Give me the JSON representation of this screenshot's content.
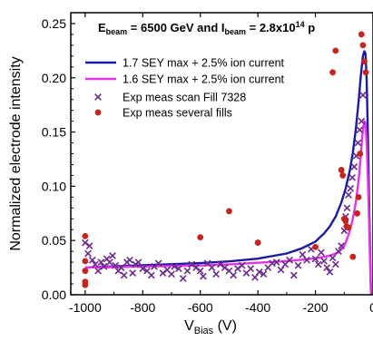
{
  "chart_data": {
    "type": "scatter",
    "title": "",
    "annotation": {
      "parts": [
        {
          "t": "E",
          "sub": false,
          "sup": false
        },
        {
          "t": "beam",
          "sub": true,
          "sup": false
        },
        {
          "t": " = 6500 GeV and I",
          "sub": false,
          "sup": false
        },
        {
          "t": "beam",
          "sub": true,
          "sup": false
        },
        {
          "t": " = 2.8x10",
          "sub": false,
          "sup": false
        },
        {
          "t": "14",
          "sub": false,
          "sup": true
        },
        {
          "t": " p",
          "sub": false,
          "sup": false
        }
      ]
    },
    "xlabel_main": "V",
    "xlabel_sub": "Bias",
    "xlabel_unit": " (V)",
    "ylabel": "Normalized electrode intensity",
    "xlim": [
      -1050,
      0
    ],
    "ylim": [
      0,
      0.26
    ],
    "xticks": [
      -1000,
      -800,
      -600,
      -400,
      -200,
      0
    ],
    "yticks": [
      0.0,
      0.05,
      0.1,
      0.15,
      0.2,
      0.25
    ],
    "grid": false,
    "legend_position": "top-left",
    "series": [
      {
        "name": "1.7 SEY max + 2.5% ion current",
        "kind": "line",
        "color": "#1a1aa6",
        "points": [
          [
            -1000,
            0.025
          ],
          [
            -900,
            0.0262
          ],
          [
            -800,
            0.0272
          ],
          [
            -700,
            0.0282
          ],
          [
            -600,
            0.0292
          ],
          [
            -500,
            0.0308
          ],
          [
            -400,
            0.0333
          ],
          [
            -300,
            0.038
          ],
          [
            -250,
            0.0425
          ],
          [
            -200,
            0.049
          ],
          [
            -170,
            0.0565
          ],
          [
            -150,
            0.063
          ],
          [
            -130,
            0.072
          ],
          [
            -110,
            0.085
          ],
          [
            -95,
            0.098
          ],
          [
            -80,
            0.115
          ],
          [
            -70,
            0.131
          ],
          [
            -60,
            0.152
          ],
          [
            -50,
            0.178
          ],
          [
            -42,
            0.203
          ],
          [
            -35,
            0.22
          ],
          [
            -30,
            0.2245
          ],
          [
            -26,
            0.222
          ],
          [
            -22,
            0.198
          ],
          [
            -18,
            0.15
          ],
          [
            -14,
            0.09
          ],
          [
            -10,
            0.04
          ],
          [
            -7,
            0
          ]
        ]
      },
      {
        "name": "1.6 SEY max + 2.5% ion current",
        "kind": "line",
        "color": "#e633e6",
        "points": [
          [
            -1000,
            0.025
          ],
          [
            -900,
            0.0255
          ],
          [
            -800,
            0.026
          ],
          [
            -700,
            0.0265
          ],
          [
            -600,
            0.027
          ],
          [
            -500,
            0.028
          ],
          [
            -400,
            0.0295
          ],
          [
            -300,
            0.031
          ],
          [
            -200,
            0.0335
          ],
          [
            -150,
            0.036
          ],
          [
            -120,
            0.039
          ],
          [
            -100,
            0.045
          ],
          [
            -85,
            0.055
          ],
          [
            -70,
            0.07
          ],
          [
            -60,
            0.085
          ],
          [
            -50,
            0.105
          ],
          [
            -42,
            0.13
          ],
          [
            -36,
            0.15
          ],
          [
            -30,
            0.16
          ],
          [
            -26,
            0.158
          ],
          [
            -22,
            0.14
          ],
          [
            -18,
            0.11
          ],
          [
            -14,
            0.07
          ],
          [
            -10,
            0.03
          ],
          [
            -7,
            0
          ]
        ]
      },
      {
        "name": "Exp meas scan Fill 7328",
        "kind": "scatter",
        "marker": "x",
        "color": "#6b2a8f",
        "points": [
          [
            -1000,
            0.048
          ],
          [
            -990,
            0.038
          ],
          [
            -985,
            0.045
          ],
          [
            -975,
            0.032
          ],
          [
            -965,
            0.028
          ],
          [
            -955,
            0.022
          ],
          [
            -945,
            0.03
          ],
          [
            -935,
            0.026
          ],
          [
            -925,
            0.033
          ],
          [
            -915,
            0.03
          ],
          [
            -905,
            0.036
          ],
          [
            -895,
            0.027
          ],
          [
            -885,
            0.022
          ],
          [
            -875,
            0.025
          ],
          [
            -865,
            0.018
          ],
          [
            -855,
            0.03
          ],
          [
            -845,
            0.032
          ],
          [
            -835,
            0.02
          ],
          [
            -825,
            0.028
          ],
          [
            -815,
            0.03
          ],
          [
            -800,
            0.024
          ],
          [
            -785,
            0.022
          ],
          [
            -770,
            0.018
          ],
          [
            -760,
            0.026
          ],
          [
            -745,
            0.029
          ],
          [
            -730,
            0.02
          ],
          [
            -715,
            0.023
          ],
          [
            -700,
            0.019
          ],
          [
            -690,
            0.026
          ],
          [
            -675,
            0.024
          ],
          [
            -660,
            0.015
          ],
          [
            -645,
            0.022
          ],
          [
            -630,
            0.028
          ],
          [
            -615,
            0.025
          ],
          [
            -600,
            0.022
          ],
          [
            -590,
            0.017
          ],
          [
            -575,
            0.029
          ],
          [
            -560,
            0.025
          ],
          [
            -545,
            0.019
          ],
          [
            -530,
            0.028
          ],
          [
            -515,
            0.025
          ],
          [
            -500,
            0.022
          ],
          [
            -485,
            0.018
          ],
          [
            -470,
            0.024
          ],
          [
            -455,
            0.027
          ],
          [
            -440,
            0.02
          ],
          [
            -425,
            0.024
          ],
          [
            -410,
            0.016
          ],
          [
            -395,
            0.021
          ],
          [
            -380,
            0.019
          ],
          [
            -365,
            0.025
          ],
          [
            -350,
            0.029
          ],
          [
            -335,
            0.03
          ],
          [
            -320,
            0.023
          ],
          [
            -305,
            0.028
          ],
          [
            -290,
            0.032
          ],
          [
            -275,
            0.018
          ],
          [
            -260,
            0.027
          ],
          [
            -245,
            0.037
          ],
          [
            -230,
            0.032
          ],
          [
            -215,
            0.042
          ],
          [
            -200,
            0.033
          ],
          [
            -190,
            0.028
          ],
          [
            -180,
            0.039
          ],
          [
            -170,
            0.031
          ],
          [
            -160,
            0.025
          ],
          [
            -150,
            0.021
          ],
          [
            -140,
            0.034
          ],
          [
            -130,
            0.028
          ],
          [
            -120,
            0.04
          ],
          [
            -110,
            0.045
          ],
          [
            -100,
            0.059
          ],
          [
            -95,
            0.072
          ],
          [
            -90,
            0.08
          ],
          [
            -85,
            0.092
          ],
          [
            -78,
            0.098
          ],
          [
            -72,
            0.108
          ],
          [
            -65,
            0.118
          ],
          [
            -58,
            0.128
          ],
          [
            -52,
            0.14
          ],
          [
            -46,
            0.152
          ],
          [
            -40,
            0.16
          ],
          [
            -35,
            0.184
          ]
        ]
      },
      {
        "name": "Exp meas several fills",
        "kind": "scatter",
        "marker": "dot",
        "color": "#c8231c",
        "points": [
          [
            -1000,
            0.054
          ],
          [
            -1000,
            0.031
          ],
          [
            -1000,
            0.022
          ],
          [
            -1000,
            0.012
          ],
          [
            -1000,
            0.009
          ],
          [
            -600,
            0.053
          ],
          [
            -500,
            0.077
          ],
          [
            -400,
            0.048
          ],
          [
            -200,
            0.044
          ],
          [
            -140,
            0.205
          ],
          [
            -130,
            0.225
          ],
          [
            -110,
            0.115
          ],
          [
            -105,
            0.11
          ],
          [
            -100,
            0.07
          ],
          [
            -95,
            0.068
          ],
          [
            -92,
            0.063
          ],
          [
            -85,
            0.062
          ],
          [
            -70,
            0.035
          ],
          [
            -55,
            0.075
          ],
          [
            -50,
            0.09
          ],
          [
            -45,
            0.13
          ],
          [
            -40,
            0.24
          ],
          [
            -35,
            0.23
          ],
          [
            -30,
            0.215
          ],
          [
            -25,
            0.205
          ]
        ]
      }
    ]
  }
}
